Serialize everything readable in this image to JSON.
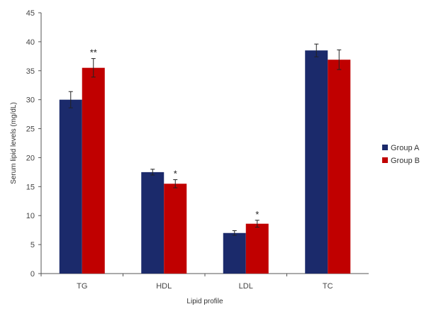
{
  "chart_data": {
    "type": "bar",
    "categories": [
      "TG",
      "HDL",
      "LDL",
      "TC"
    ],
    "series": [
      {
        "name": "Group A",
        "color": "#1b2a6b",
        "values": [
          30.0,
          17.5,
          7.0,
          38.5
        ],
        "errors": [
          1.4,
          0.5,
          0.4,
          1.1
        ],
        "annotations": [
          "",
          "",
          "",
          ""
        ]
      },
      {
        "name": "Group B",
        "color": "#c00000",
        "values": [
          35.5,
          15.5,
          8.6,
          36.9
        ],
        "errors": [
          1.6,
          0.7,
          0.6,
          1.7
        ],
        "annotations": [
          "**",
          "*",
          "*",
          ""
        ]
      }
    ],
    "xlabel": "Lipid profile",
    "ylabel": "Serum lipid levels (mg/dL)",
    "ylim": [
      0,
      45
    ],
    "yticks": [
      0,
      5,
      10,
      15,
      20,
      25,
      30,
      35,
      40,
      45
    ],
    "grid": false,
    "legend_position": "right"
  }
}
